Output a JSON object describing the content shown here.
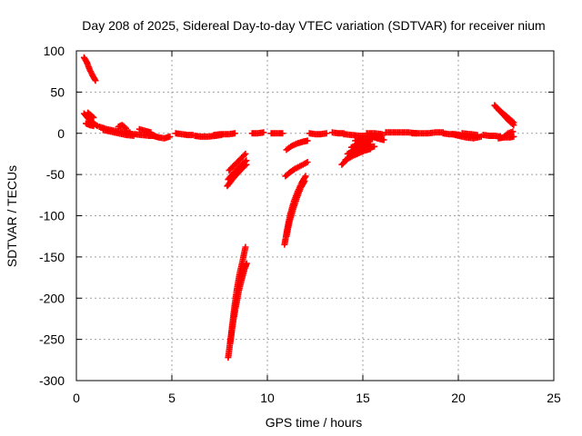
{
  "chart_data": {
    "type": "scatter",
    "title": "Day 208 of 2025, Sidereal Day-to-day VTEC variation (SDTVAR) for receiver nium",
    "xlabel": "GPS time / hours",
    "ylabel": "SDTVAR / TECUs",
    "xlim": [
      0,
      25
    ],
    "ylim": [
      -300,
      100
    ],
    "xticks": [
      0,
      5,
      10,
      15,
      20,
      25
    ],
    "yticks": [
      -300,
      -250,
      -200,
      -150,
      -100,
      -50,
      0,
      50,
      100
    ],
    "xtick_labels": [
      "0",
      "5",
      "10",
      "15",
      "20",
      "25"
    ],
    "ytick_labels": [
      "-300",
      "-250",
      "-200",
      "-150",
      "-100",
      "-50",
      "0",
      "50",
      "100"
    ],
    "grid": true,
    "marker": "+",
    "marker_color": "#ff0000",
    "series": [
      {
        "name": "SDTVAR",
        "arcs": [
          [
            [
              0.4,
              92
            ],
            [
              0.55,
              86
            ],
            [
              0.7,
              77
            ],
            [
              0.85,
              70
            ],
            [
              1.0,
              64
            ]
          ],
          [
            [
              0.4,
              24
            ],
            [
              0.55,
              20
            ],
            [
              0.7,
              16
            ],
            [
              0.9,
              12
            ],
            [
              1.1,
              9
            ]
          ],
          [
            [
              0.5,
              12
            ],
            [
              0.7,
              10
            ],
            [
              0.9,
              9
            ]
          ],
          [
            [
              0.6,
              25
            ],
            [
              0.75,
              22
            ],
            [
              0.9,
              19
            ]
          ],
          [
            [
              1.2,
              8
            ],
            [
              1.6,
              5
            ],
            [
              2.0,
              3
            ],
            [
              2.4,
              2
            ],
            [
              2.8,
              1
            ]
          ],
          [
            [
              1.4,
              4
            ],
            [
              1.8,
              2
            ],
            [
              2.2,
              0
            ],
            [
              2.6,
              -2
            ],
            [
              3.0,
              -3
            ]
          ],
          [
            [
              2.2,
              8
            ],
            [
              2.4,
              10
            ],
            [
              2.6,
              6
            ]
          ],
          [
            [
              2.6,
              0
            ],
            [
              3.0,
              -1
            ],
            [
              3.4,
              -2
            ],
            [
              3.8,
              -3
            ],
            [
              4.1,
              -3
            ]
          ],
          [
            [
              3.3,
              5
            ],
            [
              3.6,
              3
            ],
            [
              3.9,
              1
            ]
          ],
          [
            [
              4.0,
              -3
            ],
            [
              4.3,
              -5
            ],
            [
              4.6,
              -6
            ],
            [
              4.9,
              -4
            ]
          ],
          [
            [
              5.2,
              0
            ],
            [
              5.5,
              -1
            ],
            [
              5.8,
              -2
            ],
            [
              6.1,
              -2
            ]
          ],
          [
            [
              6.2,
              -3
            ],
            [
              6.5,
              -4
            ],
            [
              6.9,
              -4
            ],
            [
              7.3,
              -3
            ],
            [
              7.6,
              -2
            ]
          ],
          [
            [
              7.2,
              -2
            ],
            [
              7.6,
              -1
            ],
            [
              8.0,
              -1
            ],
            [
              8.3,
              0
            ]
          ],
          [
            [
              7.9,
              -64
            ],
            [
              8.1,
              -58
            ],
            [
              8.3,
              -52
            ],
            [
              8.5,
              -47
            ],
            [
              8.7,
              -42
            ],
            [
              8.9,
              -38
            ]
          ],
          [
            [
              7.95,
              -56
            ],
            [
              8.2,
              -49
            ],
            [
              8.45,
              -43
            ],
            [
              8.7,
              -37
            ],
            [
              8.9,
              -33
            ]
          ],
          [
            [
              8.0,
              -45
            ],
            [
              8.3,
              -38
            ],
            [
              8.6,
              -31
            ],
            [
              8.85,
              -25
            ]
          ],
          [
            [
              7.95,
              -272
            ],
            [
              8.1,
              -245
            ],
            [
              8.25,
              -215
            ],
            [
              8.4,
              -190
            ],
            [
              8.55,
              -170
            ],
            [
              8.7,
              -155
            ],
            [
              8.85,
              -138
            ]
          ],
          [
            [
              8.05,
              -255
            ],
            [
              8.2,
              -230
            ],
            [
              8.35,
              -210
            ],
            [
              8.5,
              -192
            ],
            [
              8.65,
              -178
            ],
            [
              8.8,
              -165
            ],
            [
              8.92,
              -158
            ]
          ],
          [
            [
              9.2,
              0
            ],
            [
              9.5,
              0
            ],
            [
              9.8,
              1
            ]
          ],
          [
            [
              10.2,
              0
            ],
            [
              10.5,
              0
            ],
            [
              10.8,
              0
            ]
          ],
          [
            [
              10.9,
              -135
            ],
            [
              11.05,
              -115
            ],
            [
              11.2,
              -98
            ],
            [
              11.4,
              -82
            ],
            [
              11.6,
              -70
            ],
            [
              11.8,
              -60
            ],
            [
              12.0,
              -52
            ]
          ],
          [
            [
              11.0,
              -125
            ],
            [
              11.15,
              -108
            ],
            [
              11.35,
              -92
            ],
            [
              11.55,
              -78
            ],
            [
              11.75,
              -66
            ],
            [
              11.95,
              -58
            ]
          ],
          [
            [
              10.95,
              -52
            ],
            [
              11.2,
              -47
            ],
            [
              11.45,
              -43
            ],
            [
              11.7,
              -40
            ],
            [
              11.95,
              -37
            ],
            [
              12.1,
              -35
            ]
          ],
          [
            [
              11.0,
              -20
            ],
            [
              11.3,
              -15
            ],
            [
              11.6,
              -12
            ],
            [
              11.9,
              -10
            ],
            [
              12.1,
              -9
            ]
          ],
          [
            [
              12.2,
              0
            ],
            [
              12.5,
              -1
            ],
            [
              12.8,
              -1
            ],
            [
              13.1,
              0
            ]
          ],
          [
            [
              13.4,
              1
            ],
            [
              13.7,
              0
            ],
            [
              14.0,
              0
            ]
          ],
          [
            [
              13.9,
              -38
            ],
            [
              14.2,
              -31
            ],
            [
              14.5,
              -27
            ],
            [
              14.8,
              -24
            ],
            [
              15.1,
              -21
            ],
            [
              15.4,
              -19
            ]
          ],
          [
            [
              14.1,
              -32
            ],
            [
              14.4,
              -27
            ],
            [
              14.7,
              -23
            ],
            [
              15.0,
              -20
            ],
            [
              15.3,
              -18
            ],
            [
              15.6,
              -16
            ]
          ],
          [
            [
              14.2,
              -25
            ],
            [
              14.5,
              -21
            ],
            [
              14.8,
              -18
            ],
            [
              15.1,
              -15
            ],
            [
              15.4,
              -13
            ]
          ],
          [
            [
              14.4,
              -17
            ],
            [
              14.7,
              -14
            ],
            [
              15.0,
              -12
            ],
            [
              15.3,
              -10
            ]
          ],
          [
            [
              14.6,
              -9
            ],
            [
              14.9,
              -8
            ],
            [
              15.2,
              -8
            ],
            [
              15.5,
              -7
            ]
          ],
          [
            [
              14.0,
              -1
            ],
            [
              14.4,
              -2
            ],
            [
              14.8,
              -3
            ],
            [
              15.2,
              -3
            ],
            [
              15.6,
              -3
            ],
            [
              16.0,
              -3
            ]
          ],
          [
            [
              15.6,
              -5
            ],
            [
              15.9,
              -7
            ],
            [
              16.1,
              -8
            ]
          ],
          [
            [
              15.2,
              0
            ],
            [
              15.6,
              0
            ],
            [
              16.0,
              -1
            ]
          ],
          [
            [
              16.2,
              1
            ],
            [
              16.6,
              1
            ],
            [
              17.0,
              1
            ],
            [
              17.4,
              1
            ],
            [
              17.8,
              0
            ]
          ],
          [
            [
              17.6,
              0
            ],
            [
              18.0,
              0
            ],
            [
              18.4,
              0
            ],
            [
              18.8,
              1
            ],
            [
              19.2,
              1
            ]
          ],
          [
            [
              19.2,
              0
            ],
            [
              19.5,
              -1
            ],
            [
              19.8,
              -1
            ],
            [
              20.1,
              -2
            ]
          ],
          [
            [
              19.7,
              -1
            ],
            [
              20.0,
              -3
            ],
            [
              20.4,
              -5
            ],
            [
              20.8,
              -6
            ],
            [
              21.2,
              -4
            ]
          ],
          [
            [
              20.2,
              0
            ],
            [
              20.6,
              -1
            ],
            [
              21.0,
              -2
            ]
          ],
          [
            [
              21.3,
              -2
            ],
            [
              21.6,
              -3
            ],
            [
              21.9,
              -3
            ],
            [
              22.2,
              -4
            ]
          ],
          [
            [
              22.1,
              -6
            ],
            [
              22.4,
              -5
            ],
            [
              22.7,
              -5
            ],
            [
              22.9,
              -4
            ]
          ],
          [
            [
              21.9,
              34
            ],
            [
              22.1,
              29
            ],
            [
              22.3,
              24
            ],
            [
              22.5,
              19
            ],
            [
              22.7,
              14
            ],
            [
              22.9,
              10
            ]
          ],
          [
            [
              22.0,
              31
            ],
            [
              22.3,
              25
            ],
            [
              22.6,
              19
            ],
            [
              22.9,
              13
            ]
          ],
          [
            [
              22.4,
              -4
            ],
            [
              22.6,
              0
            ],
            [
              22.85,
              2
            ]
          ]
        ]
      }
    ]
  }
}
